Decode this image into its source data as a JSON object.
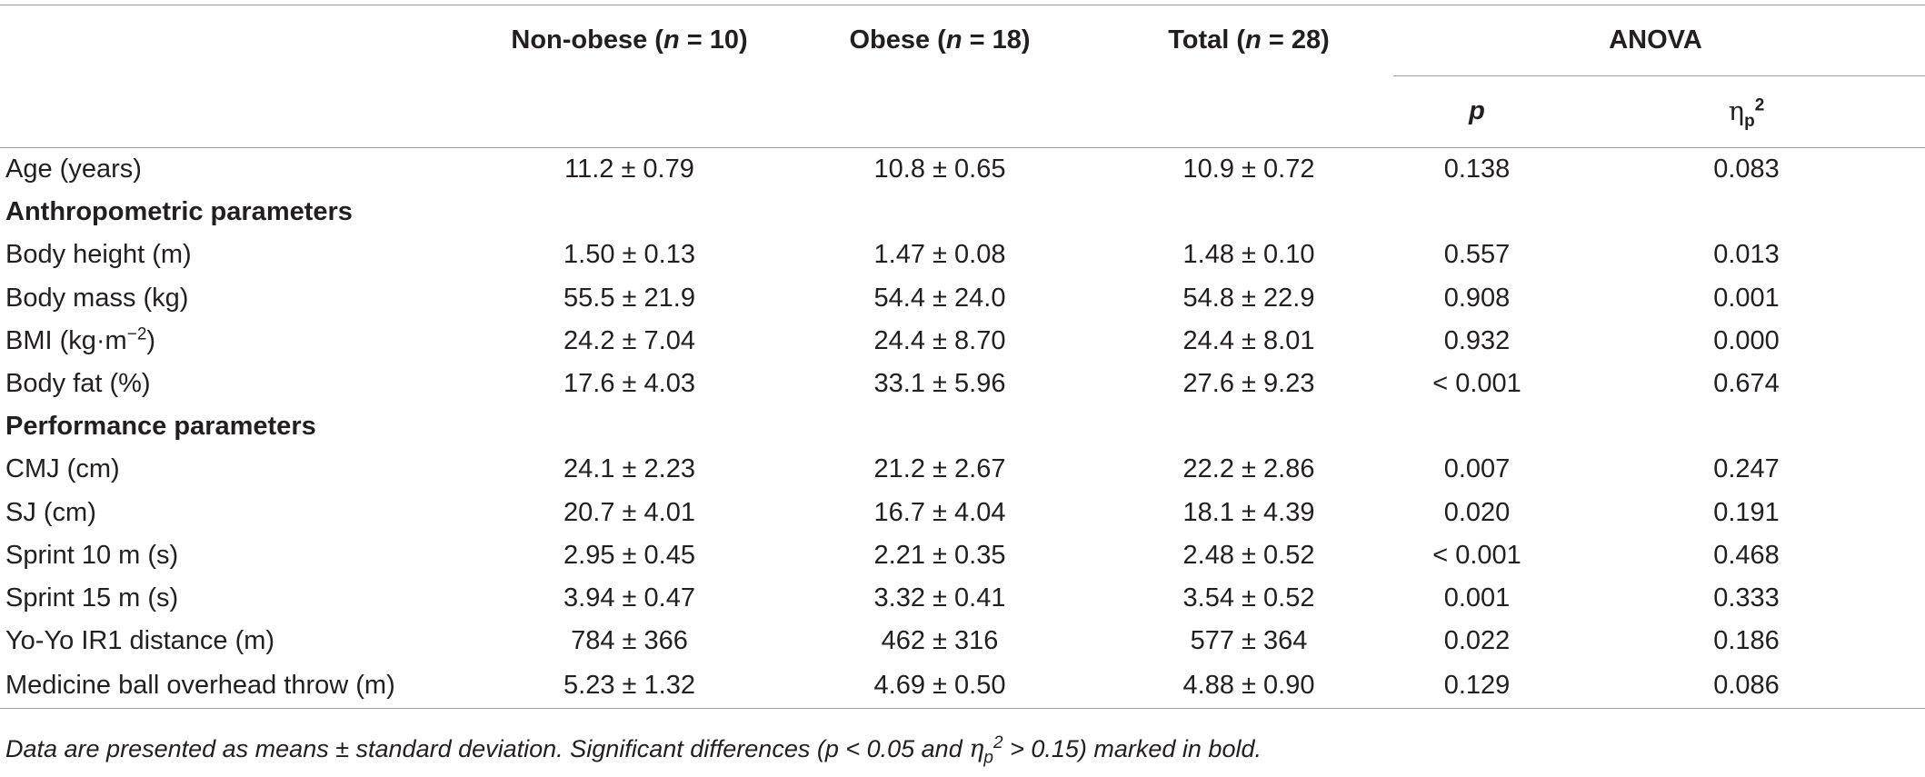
{
  "header": {
    "nonobese_label": "Non-obese (",
    "nonobese_n": "n",
    "nonobese_value": " = 10)",
    "obese_label": "Obese (",
    "obese_n": "n",
    "obese_value": " = 18)",
    "total_label": "Total (",
    "total_n": "n",
    "total_value": " = 28)",
    "anova": "ANOVA",
    "p": "p",
    "eta": "η",
    "eta_sub": "p",
    "eta_sup": "2"
  },
  "rows": {
    "age": {
      "label": "Age (years)",
      "nonobese": "11.2 ± 0.79",
      "obese": "10.8 ± 0.65",
      "total": "10.9 ± 0.72",
      "p": "0.138",
      "eta": "0.083"
    },
    "anthro_title": "Anthropometric parameters",
    "height": {
      "label": "Body height (m)",
      "nonobese": "1.50 ± 0.13",
      "obese": "1.47 ± 0.08",
      "total": "1.48 ± 0.10",
      "p": "0.557",
      "eta": "0.013"
    },
    "mass": {
      "label": "Body mass (kg)",
      "nonobese": "55.5 ± 21.9",
      "obese": "54.4 ± 24.0",
      "total": "54.8 ± 22.9",
      "p": "0.908",
      "eta": "0.001"
    },
    "bmi": {
      "label_a": "BMI (kg·m",
      "label_sup": "−2",
      "label_b": ")",
      "nonobese": "24.2 ± 7.04",
      "obese": "24.4 ± 8.70",
      "total": "24.4 ± 8.01",
      "p": "0.932",
      "eta": "0.000"
    },
    "fat": {
      "label": "Body fat (%)",
      "nonobese": "17.6 ± 4.03",
      "obese": "33.1 ± 5.96",
      "total": "27.6 ± 9.23",
      "p": "< 0.001",
      "eta": "0.674"
    },
    "perf_title": "Performance parameters",
    "cmj": {
      "label": "CMJ (cm)",
      "nonobese": "24.1 ± 2.23",
      "obese": "21.2 ± 2.67",
      "total": "22.2 ± 2.86",
      "p": "0.007",
      "eta": "0.247"
    },
    "sj": {
      "label": "SJ (cm)",
      "nonobese": "20.7 ± 4.01",
      "obese": "16.7 ± 4.04",
      "total": "18.1 ± 4.39",
      "p": "0.020",
      "eta": "0.191"
    },
    "sprint10": {
      "label": "Sprint 10 m (s)",
      "nonobese": "2.95 ± 0.45",
      "obese": "2.21 ± 0.35",
      "total": "2.48 ± 0.52",
      "p": "< 0.001",
      "eta": "0.468"
    },
    "sprint15": {
      "label": "Sprint 15 m (s)",
      "nonobese": "3.94 ± 0.47",
      "obese": "3.32 ± 0.41",
      "total": "3.54 ± 0.52",
      "p": "0.001",
      "eta": "0.333"
    },
    "yoyo": {
      "label": "Yo-Yo IR1 distance (m)",
      "nonobese": "784 ± 366",
      "obese": "462 ± 316",
      "total": "577 ± 364",
      "p": "0.022",
      "eta": "0.186"
    },
    "ball": {
      "label": "Medicine ball overhead throw (m)",
      "nonobese": "5.23 ± 1.32",
      "obese": "4.69 ± 0.50",
      "total": "4.88 ± 0.90",
      "p": "0.129",
      "eta": "0.086"
    }
  },
  "footnote": {
    "part1": "Data are presented as means ± standard deviation. Significant differences (p < 0.05 and ",
    "eta": "η",
    "eta_sub": "p",
    "eta_sup": "2",
    "part2": " > 0.15) marked in bold."
  }
}
